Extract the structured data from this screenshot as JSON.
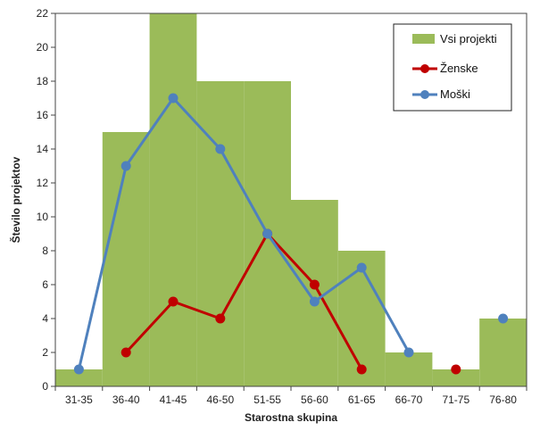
{
  "chart_data": {
    "type": "bar",
    "title": "",
    "xlabel": "Starostna skupina",
    "ylabel": "Število projektov",
    "ylim": [
      0,
      22
    ],
    "yticks": [
      0,
      2,
      4,
      6,
      8,
      10,
      12,
      14,
      16,
      18,
      20,
      22
    ],
    "grid": false,
    "legend_position": "top-right",
    "categories": [
      "31-35",
      "36-40",
      "41-45",
      "46-50",
      "51-55",
      "56-60",
      "61-65",
      "66-70",
      "71-75",
      "76-80"
    ],
    "series": [
      {
        "name": "Vsi projekti",
        "kind": "bar",
        "color": "#9bbb59",
        "values": [
          1,
          15,
          22,
          18,
          18,
          11,
          8,
          2,
          1,
          4
        ]
      },
      {
        "name": "Ženske",
        "kind": "line",
        "color": "#c00000",
        "values": [
          null,
          2,
          5,
          4,
          9,
          6,
          1,
          null,
          1,
          null
        ]
      },
      {
        "name": "Moški",
        "kind": "line",
        "color": "#4f81bd",
        "values": [
          1,
          13,
          17,
          14,
          9,
          5,
          7,
          2,
          null,
          4
        ]
      }
    ]
  }
}
